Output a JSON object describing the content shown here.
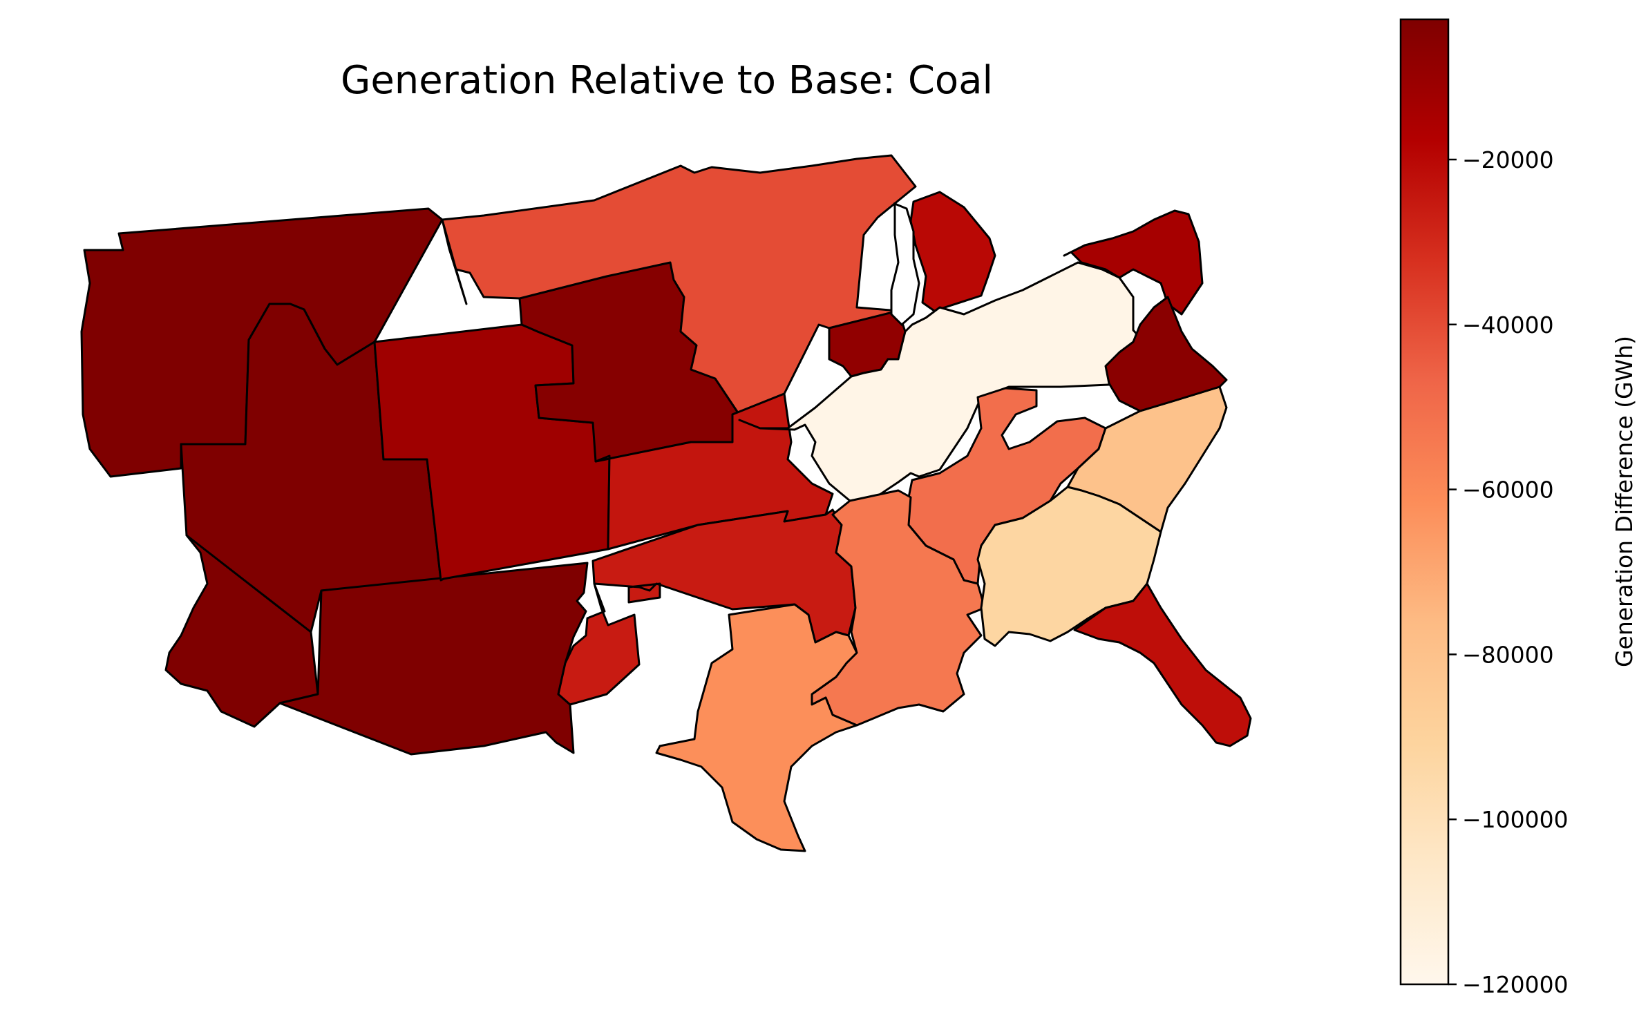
{
  "title": "Generation Relative to Base: Coal",
  "colorbar": {
    "label": "Generation Difference (GWh)",
    "min": -120000,
    "max": -3000,
    "ticks": [
      {
        "value": -20000,
        "label": "−20000"
      },
      {
        "value": -40000,
        "label": "−40000"
      },
      {
        "value": -60000,
        "label": "−60000"
      },
      {
        "value": -80000,
        "label": "−80000"
      },
      {
        "value": -100000,
        "label": "−100000"
      },
      {
        "value": -120000,
        "label": "−120000"
      }
    ],
    "colormap": "OrRd",
    "stops": [
      "#fff7ec",
      "#fee8c8",
      "#fdd49e",
      "#fdbb84",
      "#fc8d59",
      "#ef6548",
      "#d7301f",
      "#b30000",
      "#7f0000"
    ]
  },
  "regions": [
    {
      "id": "northwest",
      "value": -3000
    },
    {
      "id": "california",
      "value": -3000
    },
    {
      "id": "great-basin",
      "value": -3000
    },
    {
      "id": "southwest",
      "value": -3000
    },
    {
      "id": "rocky-mountains",
      "value": -12000
    },
    {
      "id": "northern-plains",
      "value": -5000
    },
    {
      "id": "upper-midwest",
      "value": -40000
    },
    {
      "id": "central-plains",
      "value": -24000
    },
    {
      "id": "southern-plains",
      "value": -26000
    },
    {
      "id": "new-mexico-east",
      "value": -26000
    },
    {
      "id": "missouri-illinois-west",
      "value": -8000
    },
    {
      "id": "michigan",
      "value": -20000
    },
    {
      "id": "ohio-valley",
      "value": -118000
    },
    {
      "id": "tennessee-valley",
      "value": -50000
    },
    {
      "id": "delta-south",
      "value": -54000
    },
    {
      "id": "texas",
      "value": -62000
    },
    {
      "id": "carolinas",
      "value": -80000
    },
    {
      "id": "southeast",
      "value": -92000
    },
    {
      "id": "florida",
      "value": -22000
    },
    {
      "id": "mid-atlantic",
      "value": -14000
    },
    {
      "id": "virginia",
      "value": -6000
    }
  ]
}
